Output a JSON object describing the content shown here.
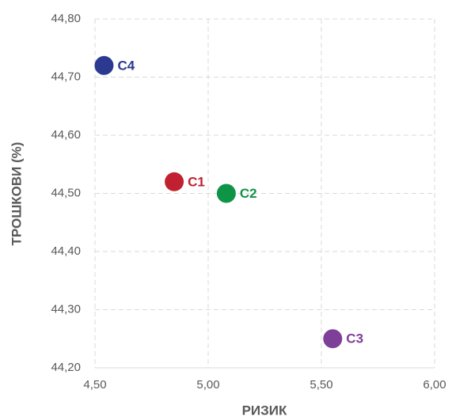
{
  "chart_data": {
    "type": "scatter",
    "x_label": "РИЗИК",
    "y_label": "ТРОШКОВИ (%)",
    "xlim": [
      4.5,
      6.0
    ],
    "xticks": [
      {
        "value": 4.5,
        "label": "4,50"
      },
      {
        "value": 5.0,
        "label": "5,00"
      },
      {
        "value": 5.5,
        "label": "5,50"
      },
      {
        "value": 6.0,
        "label": "6,00"
      }
    ],
    "ylim": [
      44.2,
      44.8
    ],
    "yticks": [
      {
        "value": 44.2,
        "label": "44,20"
      },
      {
        "value": 44.3,
        "label": "44,30"
      },
      {
        "value": 44.4,
        "label": "44,40"
      },
      {
        "value": 44.5,
        "label": "44,50"
      },
      {
        "value": 44.6,
        "label": "44,60"
      },
      {
        "value": 44.7,
        "label": "44,70"
      },
      {
        "value": 44.8,
        "label": "44,80"
      }
    ],
    "grid": true,
    "series": [
      {
        "name": "C4",
        "color": "#2b3990",
        "x": [
          4.54
        ],
        "values": [
          44.72
        ]
      },
      {
        "name": "C1",
        "color": "#c0202f",
        "x": [
          4.85
        ],
        "values": [
          44.52
        ]
      },
      {
        "name": "C2",
        "color": "#0e9447",
        "x": [
          5.08
        ],
        "values": [
          44.5
        ]
      },
      {
        "name": "C3",
        "color": "#7e3f98",
        "x": [
          5.55
        ],
        "values": [
          44.25
        ]
      }
    ]
  }
}
